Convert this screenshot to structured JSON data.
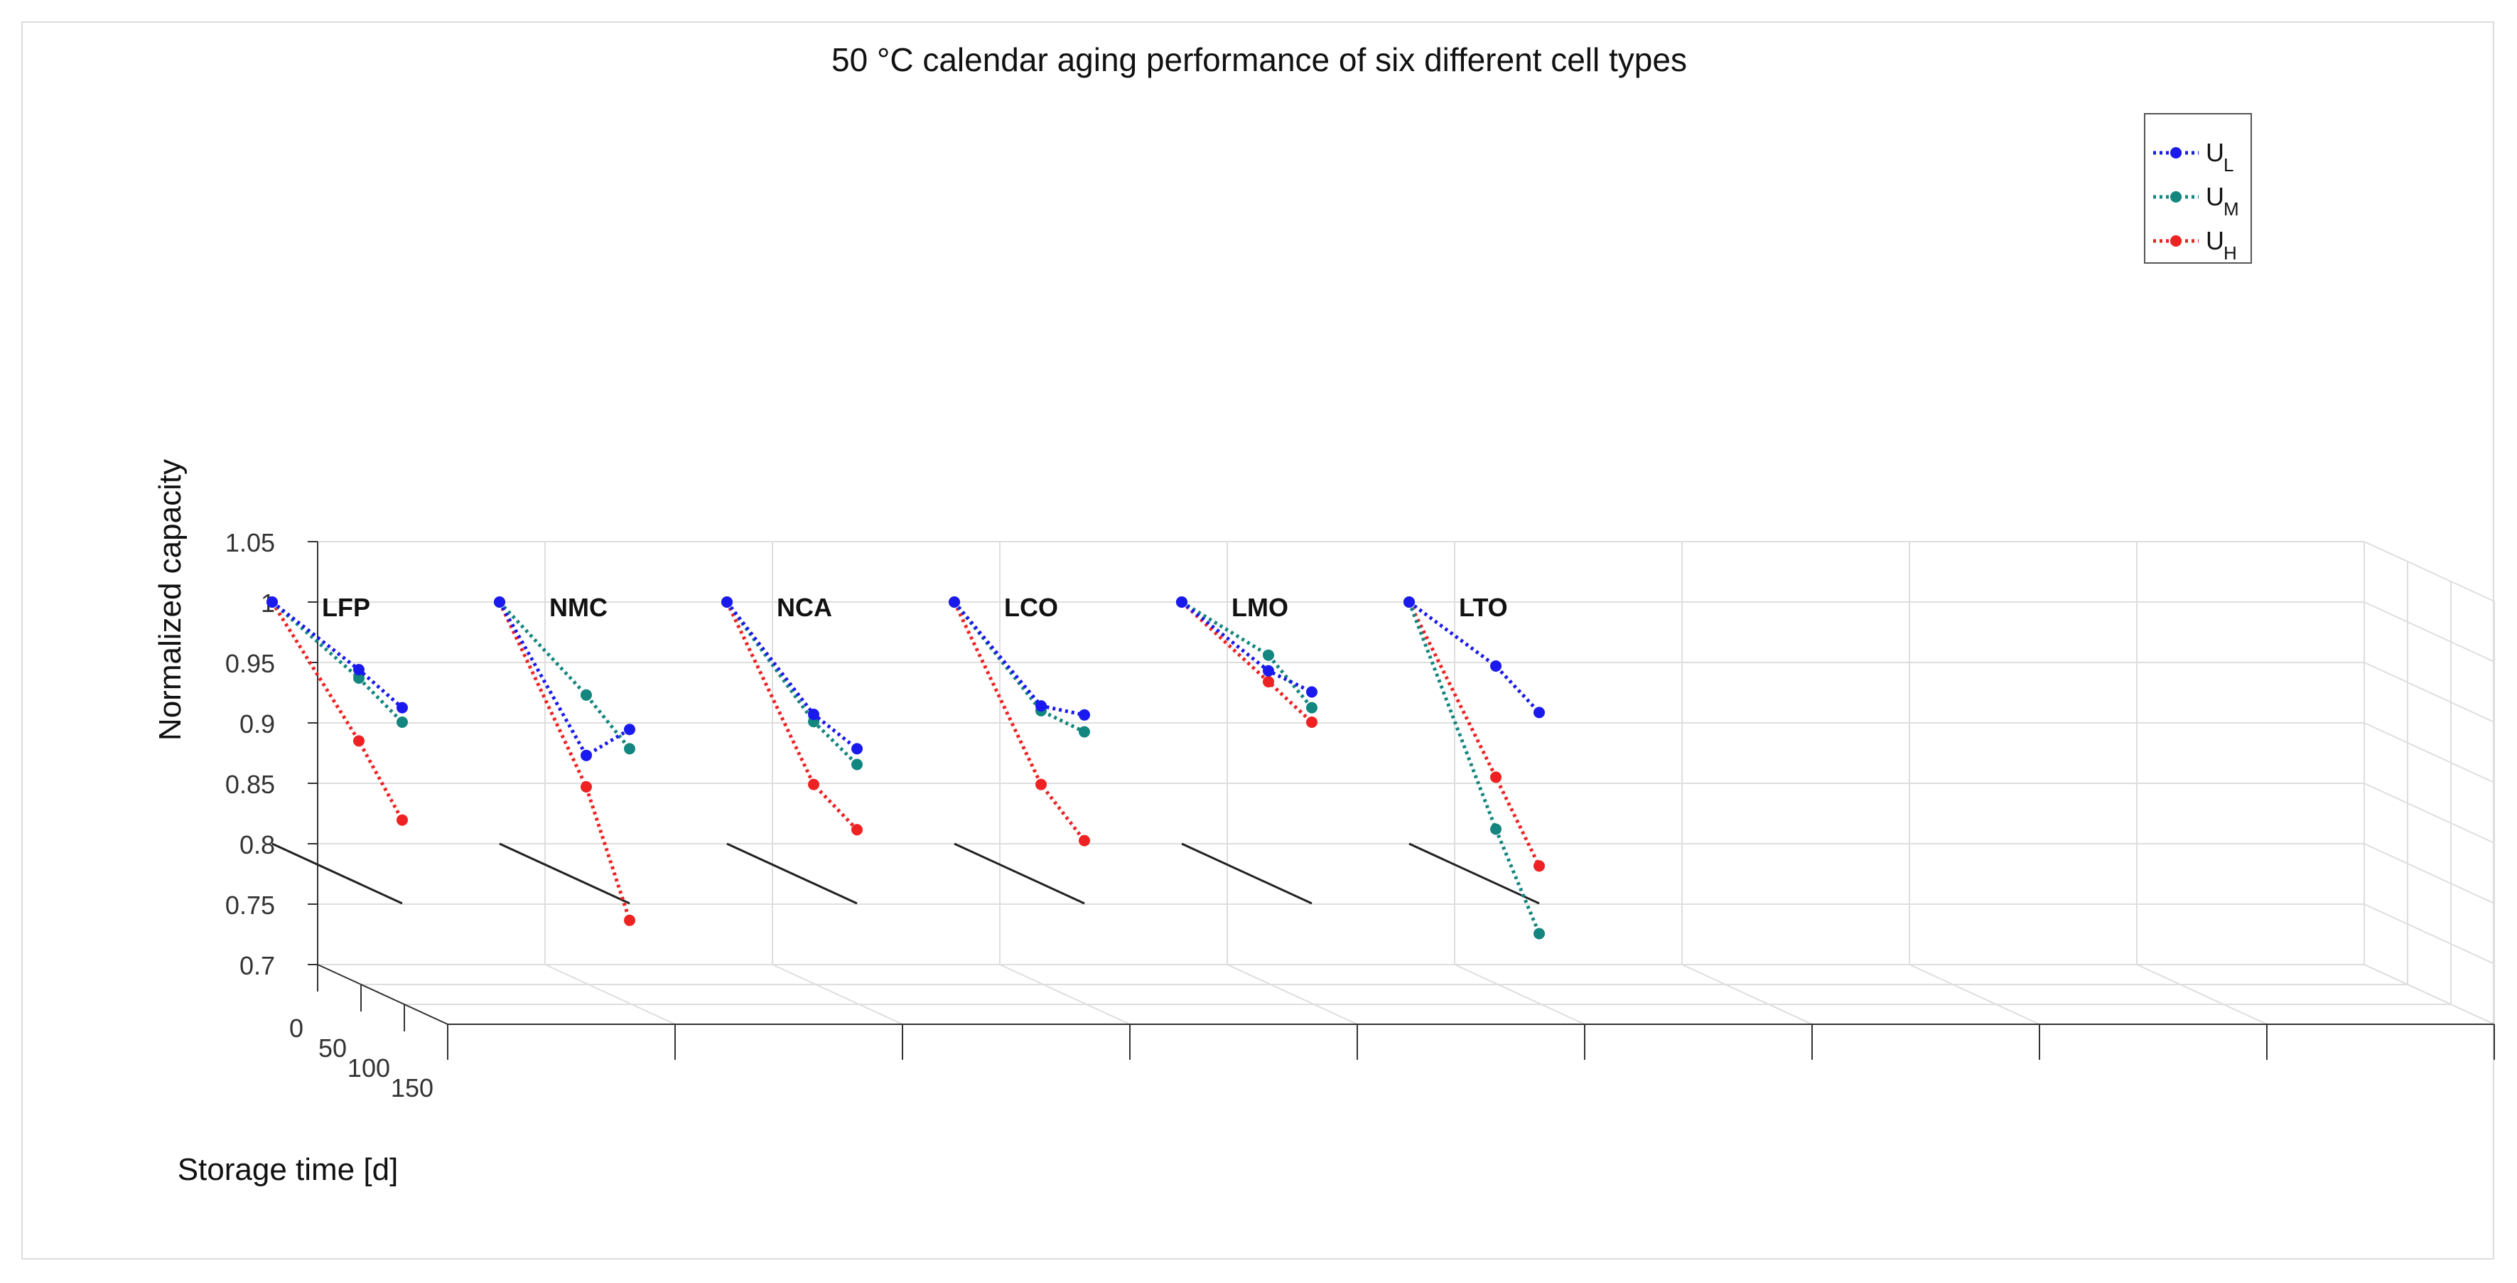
{
  "chart_data": {
    "type": "line",
    "title": "50 °C calendar aging performance of six different cell types",
    "xlabel": "Storage time [d]",
    "ylabel": "Normalized capacity",
    "xlim": [
      0,
      150
    ],
    "ylim": [
      0.7,
      1.05
    ],
    "grid": true,
    "legend_placement": "top-right",
    "x": [
      0,
      100,
      150
    ],
    "x_ticks": [
      "0",
      "50",
      "100",
      "150"
    ],
    "y_ticks": [
      "0.7",
      "0.75",
      "0.8",
      "0.85",
      "0.9",
      "0.95",
      "1",
      "1.05"
    ],
    "legend": [
      {
        "key": "UL",
        "base": "U",
        "sub": "L",
        "color": "#1a1aee"
      },
      {
        "key": "UM",
        "base": "U",
        "sub": "M",
        "color": "#13867f"
      },
      {
        "key": "UH",
        "base": "U",
        "sub": "H",
        "color": "#ee2222"
      }
    ],
    "cells": [
      {
        "name": "LFP",
        "series": {
          "UL": [
            1.0,
            0.977,
            0.962
          ],
          "UM": [
            1.0,
            0.97,
            0.95
          ],
          "UH": [
            1.0,
            0.918,
            0.869
          ]
        }
      },
      {
        "name": "NMC",
        "series": {
          "UL": [
            1.0,
            0.906,
            0.944
          ],
          "UM": [
            1.0,
            0.956,
            0.928
          ],
          "UH": [
            1.0,
            0.88,
            0.786
          ]
        }
      },
      {
        "name": "NCA",
        "series": {
          "UL": [
            1.0,
            0.94,
            0.928
          ],
          "UM": [
            1.0,
            0.934,
            0.915
          ],
          "UH": [
            1.0,
            0.882,
            0.861
          ]
        }
      },
      {
        "name": "LCO",
        "series": {
          "UL": [
            1.0,
            0.947,
            0.956
          ],
          "UM": [
            1.0,
            0.943,
            0.942
          ],
          "UH": [
            1.0,
            0.882,
            0.852
          ]
        }
      },
      {
        "name": "LMO",
        "series": {
          "UL": [
            1.0,
            0.976,
            0.975
          ],
          "UM": [
            1.0,
            0.989,
            0.962
          ],
          "UH": [
            1.0,
            0.967,
            0.95
          ]
        }
      },
      {
        "name": "LTO",
        "series": {
          "UL": [
            1.0,
            0.98,
            0.958
          ],
          "UM": [
            1.0,
            0.845,
            0.775
          ],
          "UH": [
            1.0,
            0.888,
            0.831
          ]
        }
      }
    ]
  }
}
